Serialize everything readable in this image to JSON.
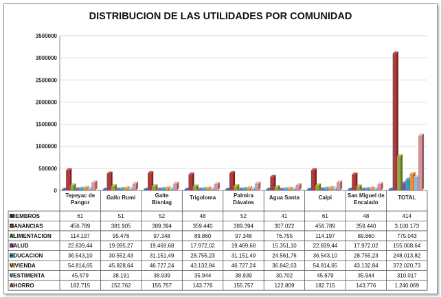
{
  "chart_data": {
    "type": "bar",
    "title": "DISTRIBUCION DE LAS UTILIDADES POR COMUNIDAD",
    "categories": [
      "Tepeyac de Pangor",
      "Gallo Rumi",
      "Galte Bisniag",
      "Trigoloma",
      "Palmira Dávalos",
      "Agua Santa",
      "Calpi",
      "San Miguel de Encalado",
      "TOTAL"
    ],
    "ylim": [
      0,
      3500000
    ],
    "yticks": [
      "0",
      "500000",
      "1000000",
      "1500000",
      "2000000",
      "2500000",
      "3000000",
      "3500000"
    ],
    "grid": true,
    "series": [
      {
        "name": "MIEMBROS",
        "values": [
          61,
          51,
          52,
          48,
          52,
          41,
          61,
          48,
          414
        ],
        "labels": [
          "61",
          "51",
          "52",
          "48",
          "52",
          "41",
          "61",
          "48",
          "414"
        ],
        "color": "#3a5f9e"
      },
      {
        "name": "GANANCIAS",
        "values": [
          456789,
          381905,
          389394,
          359440,
          389394,
          307022,
          456789,
          359440,
          3100173
        ],
        "labels": [
          "456.789",
          "381.905",
          "389.394",
          "359.440",
          "389.394",
          "307.022",
          "456.789",
          "359.440",
          "3.100.173"
        ],
        "color": "#b03b3b"
      },
      {
        "name": "ALIMENTACION",
        "values": [
          114197,
          95476,
          97348,
          89860,
          97348,
          76755,
          114197,
          89860,
          775043
        ],
        "labels": [
          "114.197",
          "95.476",
          "97.348",
          "89.860",
          "97.348",
          "76.755",
          "114.197",
          "89.860",
          "775.043"
        ],
        "color": "#8aaa3c"
      },
      {
        "name": "SALUD",
        "values": [
          22839.44,
          19095.27,
          19469.68,
          17972.02,
          19469.68,
          15351.1,
          22839.44,
          17972.02,
          155008.64
        ],
        "labels": [
          "22.839,44",
          "19.095,27",
          "19.469,68",
          "17.972,02",
          "19.469,68",
          "15.351,10",
          "22.839,44",
          "17.972,02",
          "155.008,64"
        ],
        "color": "#7559a0"
      },
      {
        "name": "EDUCACION",
        "values": [
          36543.1,
          30552.43,
          31151.49,
          28755.23,
          31151.49,
          24561.76,
          36543.1,
          28755.23,
          248013.82
        ],
        "labels": [
          "36.543,10",
          "30.552,43",
          "31.151,49",
          "28.755,23",
          "31.151,49",
          "24.561,76",
          "36.543,10",
          "28.755,23",
          "248.013,82"
        ],
        "color": "#3a9cc0"
      },
      {
        "name": "VIVIENDA",
        "values": [
          54814.65,
          45828.64,
          46727.24,
          43132.84,
          46727.24,
          36842.63,
          54814.65,
          43132.84,
          372020.73
        ],
        "labels": [
          "54.814,65",
          "45.828,64",
          "46.727,24",
          "43.132,84",
          "46.727,24",
          "36.842,63",
          "54.814,65",
          "43.132,84",
          "372.020,73"
        ],
        "color": "#e8913a"
      },
      {
        "name": "VESTIMENTA",
        "values": [
          45679,
          38191,
          38939,
          35944,
          38939,
          30702,
          45679,
          35944,
          310017
        ],
        "labels": [
          "45.679",
          "38.191",
          "38.939",
          "35.944",
          "38.939",
          "30.702",
          "45.679",
          "35.944",
          "310.017"
        ],
        "color": "#9ab3dc"
      },
      {
        "name": "AHORRO",
        "values": [
          182715,
          152762,
          155757,
          143776,
          155757,
          122809,
          182715,
          143776,
          1240069
        ],
        "labels": [
          "182.715",
          "152.762",
          "155.757",
          "143.776",
          "155.757",
          "122.809",
          "182.715",
          "143.776",
          "1.240.069"
        ],
        "color": "#d99498"
      }
    ]
  }
}
